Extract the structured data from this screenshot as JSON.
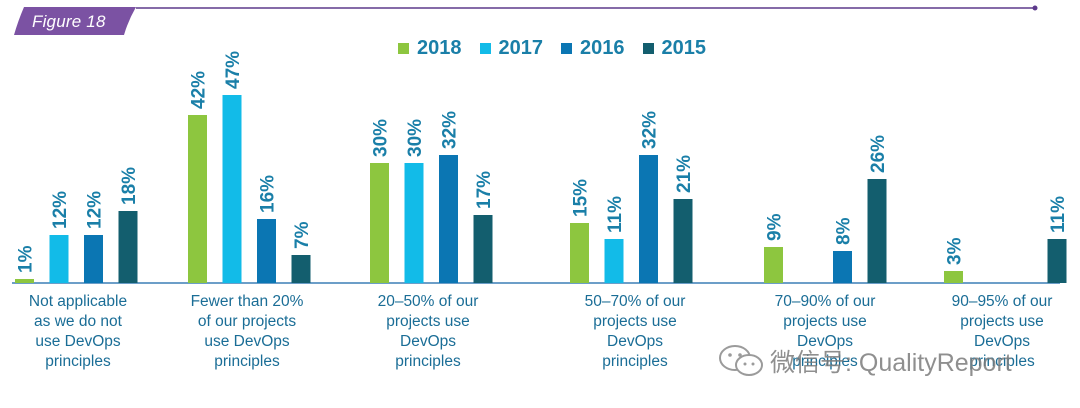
{
  "header": {
    "figure_label": "Figure 18",
    "tab_color": "#7b52a3",
    "rule_color": "#5d3a8c"
  },
  "chart_data": {
    "type": "bar",
    "title": "",
    "xlabel": "",
    "ylabel": "",
    "ylim": [
      0,
      50
    ],
    "legend_position": "top-center",
    "categories": [
      "Not applicable as we do not use DevOps principles",
      "Fewer than 20% of our projects use DevOps principles",
      "20–50% of our projects use DevOps principles",
      "50–70% of our projects use DevOps principles",
      "70–90% of our projects use DevOps principles",
      "90–95% of our projects use DevOps principles"
    ],
    "category_lines": [
      [
        "Not applicable",
        "as we do not",
        "use DevOps",
        "principles"
      ],
      [
        "Fewer than 20%",
        "of our projects",
        "use DevOps",
        "principles"
      ],
      [
        "20–50% of our",
        "projects use",
        "DevOps",
        "principles"
      ],
      [
        "50–70% of our",
        "projects use",
        "DevOps",
        "principles"
      ],
      [
        "70–90% of our",
        "projects use",
        "DevOps",
        "principles"
      ],
      [
        "90–95% of our",
        "projects use",
        "DevOps",
        "principles"
      ]
    ],
    "series": [
      {
        "name": "2018",
        "color": "#8dc63f",
        "values": [
          1,
          42,
          30,
          15,
          9,
          3
        ],
        "labels": [
          "1%",
          "42%",
          "30%",
          "15%",
          "9%",
          "3%"
        ]
      },
      {
        "name": "2017",
        "color": "#12bbe8",
        "values": [
          12,
          47,
          30,
          11,
          null,
          null
        ],
        "labels": [
          "12%",
          "47%",
          "30%",
          "11%",
          "",
          ""
        ]
      },
      {
        "name": "2016",
        "color": "#0b76b3",
        "values": [
          12,
          16,
          32,
          32,
          8,
          null
        ],
        "labels": [
          "12%",
          "16%",
          "32%",
          "32%",
          "8%",
          ""
        ]
      },
      {
        "name": "2015",
        "color": "#135e6e",
        "values": [
          18,
          7,
          17,
          21,
          26,
          11
        ],
        "labels": [
          "18%",
          "7%",
          "17%",
          "21%",
          "26%",
          "11%"
        ]
      }
    ],
    "label_color": "#1a7fa8",
    "axis_color": "#3b7fb5"
  },
  "watermark": {
    "text": "微信号: QualityReport"
  }
}
